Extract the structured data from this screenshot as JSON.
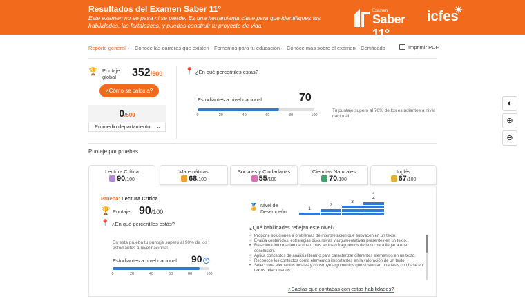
{
  "banner": {
    "title": "Resultados del Examen Saber 11°",
    "subtitle": "Este examen no se pasa ni se pierde. Es una herramienta clave para que identifiques tus habilidades, las fortalezcas, y puedas construir tu proyecto de vida.",
    "brand_examen": "Examen",
    "brand_saber": "Saber 11°",
    "brand_icfes": "icfes",
    "color": "#f26b1d"
  },
  "breadcrumb": {
    "items": [
      "Reporte general",
      "Conoce las carreras que existen",
      "Fomentos para tu educación",
      "Conoce más sobre el examen",
      "Certificado"
    ],
    "print": "Imprimir PDF"
  },
  "global": {
    "label": "Puntaje global",
    "score": "352",
    "of": "/500",
    "calc_button": "¿Cómo se calcula?",
    "dept_score": "0",
    "dept_of": "/500",
    "dept_select": "Promedio departamento"
  },
  "percentile": {
    "question": "¿En qué percentiles estás?",
    "national_label": "Estudiantes a nivel nacional",
    "national_value": "70",
    "fill_percent": 70,
    "ticks": [
      "0",
      "20",
      "40",
      "60",
      "80",
      "100"
    ],
    "note": "Tu puntaje superó al 70% de los estudiantes a nivel nacional."
  },
  "section_title": "Puntaje por pruebas",
  "tabs": [
    {
      "name": "Lectura Crítica",
      "score": "90",
      "of": "/100",
      "icon": "book-icon"
    },
    {
      "name": "Matemáticas",
      "score": "68",
      "of": "/100",
      "icon": "calculator-icon"
    },
    {
      "name": "Sociales y Ciudadanas",
      "score": "55",
      "of": "/100",
      "icon": "people-icon"
    },
    {
      "name": "Ciencias Naturales",
      "score": "70",
      "of": "/100",
      "icon": "leaf-icon"
    },
    {
      "name": "Inglés",
      "score": "67",
      "of": "/100",
      "icon": "chat-icon"
    }
  ],
  "detail": {
    "prueba_label": "Prueba:",
    "prueba_name": "Lectura Crítica",
    "score_label": "Puntaje",
    "score": "90",
    "of": "/100",
    "perc_question": "¿En qué percentiles estás?",
    "perc_note": "En esta prueba tu puntaje superó al 90% de los estudiantes a nivel nacional.",
    "national_label": "Estudiantes a nivel nacional",
    "national_value": "90",
    "fill_percent": 90,
    "ticks": [
      "0",
      "20",
      "40",
      "60",
      "80",
      "100"
    ],
    "level_label": "Nivel de Desempeño",
    "levels": [
      "1",
      "2",
      "3",
      "4"
    ],
    "current_level_marker": "*",
    "skills_question": "¿Qué habilidades reflejan este nivel?",
    "skills": [
      "Propone soluciones a problemas de interpretación que subyacen en un texto.",
      "Evalúa contenidos, estrategias discursivas y argumentativas presentes en un texto.",
      "Relaciona información de dos o más textos o fragmentos de texto para llegar a una conclusión.",
      "Aplica conceptos de análisis literario para caracterizar diferentes elementos en un texto.",
      "Reconoce los contextos como elementos importantes en la valoración de un texto.",
      "Selecciona elementos locales y construye argumentos que sustentan una tesis con base en textos relacionados."
    ],
    "link": "¿Sabías que contabas con estas habilidades?"
  },
  "accent_blue": "#2f7ad6"
}
